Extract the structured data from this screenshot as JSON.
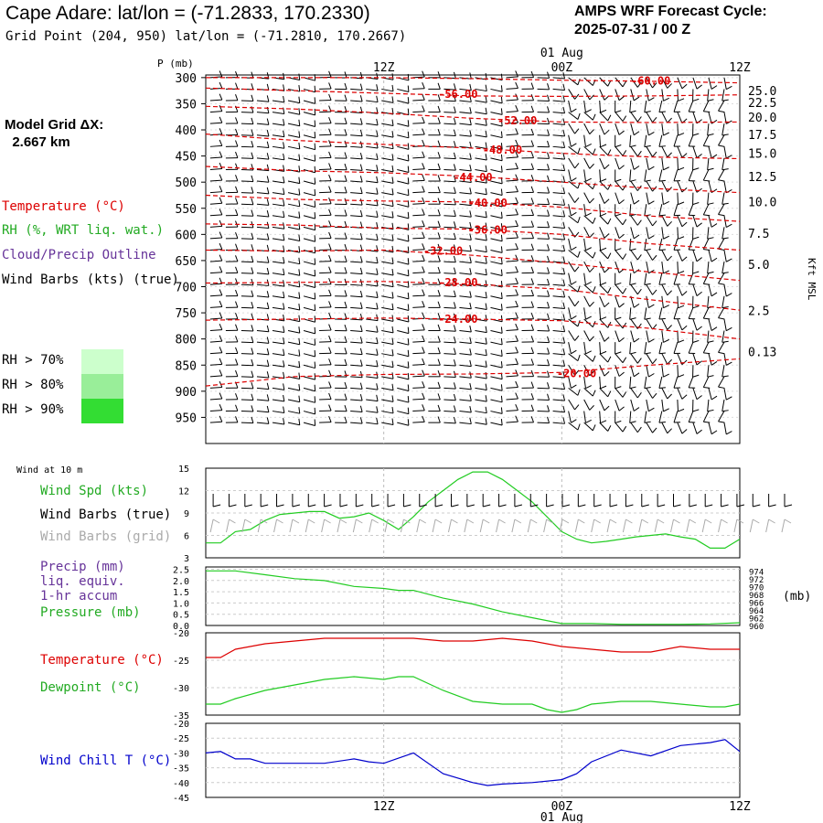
{
  "header": {
    "title": "Cape Adare:  lat/lon = (-71.2833, 170.2330)",
    "subtitle": "Grid Point (204, 950) lat/lon = (-71.2810, 170.2667)",
    "cycle_line1": "AMPS WRF Forecast Cycle:",
    "cycle_line2": "2025-07-31 / 00  Z"
  },
  "sidebar": {
    "grid_label": "Model Grid ΔX:\n  2.667 km",
    "legend": {
      "temperature": "Temperature (°C)",
      "rh": "RH (%, WRT liq. wat.)",
      "cloud": "Cloud/Precip Outline",
      "wind": "Wind Barbs (kts) (true)"
    },
    "rh_levels": [
      {
        "label": "RH > 70%",
        "color": "#ccffcc"
      },
      {
        "label": "RH > 80%",
        "color": "#99ee99"
      },
      {
        "label": "RH > 90%",
        "color": "#33dd33"
      }
    ],
    "wind10_title": "Wind at 10 m",
    "wind_spd": "Wind Spd (kts)",
    "wind_barbs_true": "Wind Barbs (true)",
    "wind_barbs_grid": "Wind Barbs (grid)",
    "precip": "Precip (mm)",
    "precip2": "liq. equiv.",
    "precip3": "1-hr accum",
    "pressure": "Pressure (mb)",
    "temp2": "Temperature (°C)",
    "dewpoint": "Dewpoint (°C)",
    "windchill": "Wind Chill T (°C)"
  },
  "colors": {
    "temperature": "#dd0000",
    "green": "#22cc22",
    "purple": "#663399",
    "blue": "#0000cc",
    "grey": "#aaaaaa"
  },
  "time_axis": {
    "ticks": [
      "12Z",
      "00Z",
      "12Z"
    ],
    "date": "01 Aug",
    "hours": [
      0,
      36
    ],
    "tick_hours": [
      12,
      24,
      36
    ]
  },
  "chart_data": [
    {
      "type": "line",
      "panel": "upper-air",
      "ylabel": "P (mb)",
      "y2label": "Kft MSL",
      "yticks": [
        300,
        350,
        400,
        450,
        500,
        550,
        600,
        650,
        700,
        750,
        800,
        850,
        900,
        950
      ],
      "ylim": [
        1000,
        295
      ],
      "height_ticks": [
        {
          "label": "25.0",
          "p": 300
        },
        {
          "label": "22.5",
          "p": 323
        },
        {
          "label": "20.0",
          "p": 351
        },
        {
          "label": "17.5",
          "p": 384
        },
        {
          "label": "15.0",
          "p": 420
        },
        {
          "label": "12.5",
          "p": 465
        },
        {
          "label": "10.0",
          "p": 513
        },
        {
          "label": "7.5",
          "p": 573
        },
        {
          "label": "5.0",
          "p": 633
        },
        {
          "label": "2.5",
          "p": 721
        },
        {
          "label": "0.13",
          "p": 800
        }
      ],
      "isotherms": [
        {
          "label": "-60.00",
          "label_x": 30,
          "label_y": 305,
          "x": [
            0,
            6,
            12,
            18,
            24,
            30,
            36
          ],
          "y": [
            300,
            300,
            300,
            302,
            305,
            307,
            310
          ]
        },
        {
          "label": "-56.00",
          "label_x": 17,
          "label_y": 330,
          "x": [
            0,
            6,
            12,
            18,
            24,
            30,
            36
          ],
          "y": [
            320,
            325,
            330,
            335,
            336,
            335,
            333
          ]
        },
        {
          "label": "-52.00",
          "label_x": 21,
          "label_y": 381,
          "x": [
            0,
            6,
            12,
            18,
            24,
            30,
            36
          ],
          "y": [
            355,
            360,
            368,
            378,
            385,
            386,
            385
          ]
        },
        {
          "label": "-48.00",
          "label_x": 20,
          "label_y": 437,
          "x": [
            0,
            6,
            12,
            18,
            24,
            30,
            36
          ],
          "y": [
            408,
            420,
            428,
            435,
            445,
            452,
            455
          ]
        },
        {
          "label": "-44.00",
          "label_x": 18,
          "label_y": 489,
          "x": [
            0,
            6,
            12,
            18,
            24,
            30,
            36
          ],
          "y": [
            470,
            478,
            482,
            489,
            500,
            512,
            520
          ]
        },
        {
          "label": "-40.00",
          "label_x": 19,
          "label_y": 538,
          "x": [
            0,
            6,
            12,
            18,
            24,
            30,
            36
          ],
          "y": [
            525,
            533,
            536,
            538,
            548,
            565,
            575
          ]
        },
        {
          "label": "-36.00",
          "label_x": 19,
          "label_y": 590,
          "x": [
            0,
            6,
            12,
            18,
            24,
            30,
            36
          ],
          "y": [
            580,
            582,
            588,
            590,
            600,
            618,
            630
          ]
        },
        {
          "label": "-32.00",
          "label_x": 16,
          "label_y": 630,
          "x": [
            0,
            6,
            12,
            18,
            24,
            30,
            36
          ],
          "y": [
            630,
            632,
            630,
            640,
            655,
            672,
            688
          ]
        },
        {
          "label": "-28.00",
          "label_x": 17,
          "label_y": 690,
          "x": [
            0,
            6,
            12,
            18,
            24,
            30,
            36
          ],
          "y": [
            693,
            692,
            690,
            695,
            705,
            725,
            745
          ]
        },
        {
          "label": "-24.00",
          "label_x": 17,
          "label_y": 760,
          "x": [
            0,
            6,
            12,
            18,
            24,
            30,
            36
          ],
          "y": [
            764,
            762,
            760,
            762,
            765,
            780,
            800
          ]
        },
        {
          "label": "-20.00",
          "label_x": 25,
          "label_y": 864,
          "x": [
            0,
            6,
            12,
            18,
            24,
            30,
            36
          ],
          "y": [
            890,
            872,
            868,
            867,
            864,
            850,
            838
          ]
        }
      ]
    },
    {
      "type": "line",
      "panel": "wind-10m",
      "yticks": [
        3,
        6,
        9,
        12,
        15
      ],
      "ylim": [
        3,
        15
      ],
      "series": [
        {
          "name": "Wind Spd (kts)",
          "x": [
            0,
            1,
            2,
            3,
            4,
            5,
            6,
            7,
            8,
            9,
            10,
            11,
            12,
            13,
            14,
            15,
            16,
            17,
            18,
            19,
            20,
            21,
            22,
            23,
            24,
            25,
            26,
            27,
            28,
            29,
            30,
            31,
            32,
            33,
            34,
            35,
            36
          ],
          "values": [
            5.0,
            5.0,
            6.5,
            6.8,
            8.0,
            8.8,
            9.0,
            9.2,
            9.2,
            8.3,
            8.5,
            9.0,
            8.0,
            6.8,
            8.5,
            10.5,
            12.0,
            13.5,
            14.5,
            14.5,
            13.5,
            12.0,
            10.5,
            8.5,
            6.5,
            5.5,
            5.0,
            5.2,
            5.5,
            5.8,
            6.0,
            6.2,
            5.8,
            5.5,
            4.3,
            4.3,
            5.5
          ]
        }
      ]
    },
    {
      "type": "line",
      "panel": "precip-pressure",
      "yticks": [
        0.0,
        0.5,
        1.0,
        1.5,
        2.0,
        2.5
      ],
      "ylim": [
        0,
        2.6
      ],
      "y2ticks": [
        960,
        962,
        964,
        966,
        968,
        970,
        972,
        974
      ],
      "y2lim": [
        960,
        975
      ],
      "series": [
        {
          "name": "Pressure (mb)",
          "x": [
            0,
            2,
            4,
            6,
            8,
            10,
            12,
            13,
            14,
            16,
            18,
            20,
            22,
            24,
            26,
            28,
            30,
            32,
            34,
            36
          ],
          "values": [
            974,
            974,
            973,
            972,
            971.5,
            970,
            969.5,
            969,
            969,
            967,
            965.5,
            963.5,
            962,
            960.5,
            960.5,
            960.3,
            960.3,
            960.3,
            960.4,
            960.7
          ]
        }
      ]
    },
    {
      "type": "line",
      "panel": "temperature",
      "yticks": [
        -20,
        -25,
        -30,
        -35
      ],
      "ylim": [
        -35,
        -20
      ],
      "series": [
        {
          "name": "Temperature (°C)",
          "x": [
            0,
            1,
            2,
            4,
            6,
            8,
            10,
            12,
            14,
            16,
            18,
            20,
            22,
            24,
            26,
            28,
            30,
            32,
            34,
            36
          ],
          "values": [
            -24.5,
            -24.5,
            -23,
            -22,
            -21.5,
            -21,
            -21,
            -21,
            -21,
            -21.5,
            -21.5,
            -21,
            -21.5,
            -22.5,
            -23,
            -23.5,
            -23.5,
            -22.5,
            -23,
            -23
          ]
        },
        {
          "name": "Dewpoint (°C)",
          "x": [
            0,
            1,
            2,
            4,
            6,
            8,
            10,
            12,
            13,
            14,
            16,
            18,
            20,
            22,
            23,
            24,
            25,
            26,
            28,
            30,
            32,
            34,
            35,
            36
          ],
          "values": [
            -33,
            -33,
            -32,
            -30.5,
            -29.5,
            -28.5,
            -28,
            -28.5,
            -28,
            -28,
            -30.5,
            -32.5,
            -33,
            -33,
            -34,
            -34.5,
            -34,
            -33,
            -32.5,
            -32.5,
            -33,
            -33.5,
            -33.5,
            -33
          ]
        }
      ]
    },
    {
      "type": "line",
      "panel": "wind-chill",
      "yticks": [
        -20,
        -25,
        -30,
        -35,
        -40,
        -45
      ],
      "ylim": [
        -45,
        -20
      ],
      "series": [
        {
          "name": "Wind Chill T (°C)",
          "x": [
            0,
            1,
            2,
            3,
            4,
            6,
            8,
            10,
            11,
            12,
            14,
            16,
            18,
            19,
            20,
            22,
            24,
            25,
            26,
            28,
            30,
            32,
            34,
            35,
            36
          ],
          "values": [
            -30,
            -29.5,
            -32,
            -32,
            -33.5,
            -33.5,
            -33.5,
            -32,
            -33,
            -33.5,
            -30,
            -37,
            -40,
            -41,
            -40.5,
            -40,
            -39,
            -37,
            -33,
            -29,
            -31,
            -27.5,
            -26.5,
            -25.5,
            -29.5
          ]
        }
      ]
    }
  ]
}
